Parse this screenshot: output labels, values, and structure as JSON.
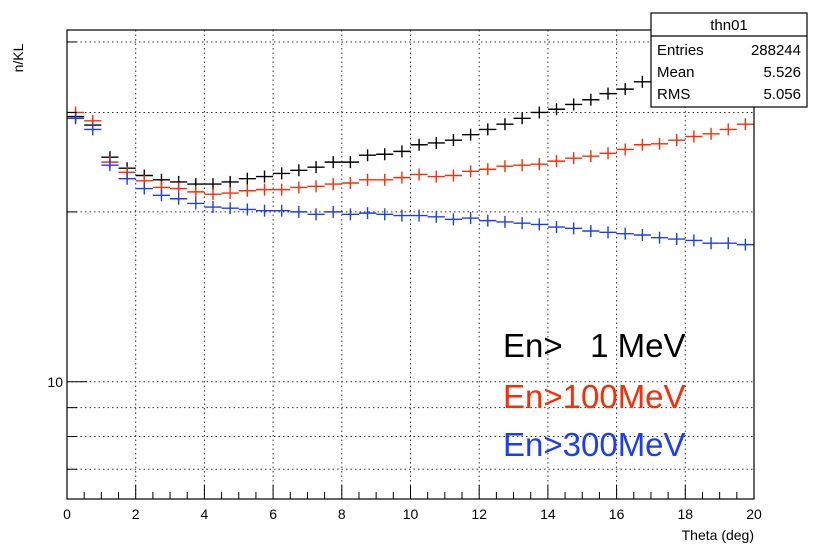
{
  "chart_data": {
    "type": "scatter",
    "xlabel": "Theta (deg)",
    "ylabel": "n/KL",
    "xlim": [
      0,
      20
    ],
    "ylim": [
      6.2,
      42
    ],
    "y_scale": "log",
    "grid": true,
    "x_ticks": [
      "0",
      "2",
      "4",
      "6",
      "8",
      "10",
      "12",
      "14",
      "16",
      "18",
      "20"
    ],
    "y_tick_labels": [
      {
        "value": 10,
        "label": "10"
      }
    ],
    "stats_box": {
      "title": "thn01",
      "rows": [
        {
          "label": "Entries",
          "value": "288244"
        },
        {
          "label": "Mean",
          "value": "5.526"
        },
        {
          "label": "RMS",
          "value": "5.056"
        }
      ]
    },
    "legend": [
      {
        "text": "En>   1 MeV",
        "color": "#000000"
      },
      {
        "text": "En>100MeV",
        "color": "#ff2a00"
      },
      {
        "text": "En>300MeV",
        "color": "#1a3cff"
      }
    ],
    "x": [
      0.25,
      0.75,
      1.25,
      1.75,
      2.25,
      2.75,
      3.25,
      3.75,
      4.25,
      4.75,
      5.25,
      5.75,
      6.25,
      6.75,
      7.25,
      7.75,
      8.25,
      8.75,
      9.25,
      9.75,
      10.25,
      10.75,
      11.25,
      11.75,
      12.25,
      12.75,
      13.25,
      13.75,
      14.25,
      14.75,
      15.25,
      15.75,
      16.25,
      16.75,
      17.25,
      17.75,
      18.25,
      18.75,
      19.25,
      19.75
    ],
    "series": [
      {
        "color": "#000000",
        "values": [
          29.5,
          28.5,
          25.0,
          23.9,
          23.2,
          22.8,
          22.6,
          22.4,
          22.4,
          22.6,
          22.9,
          23.1,
          23.4,
          23.7,
          24.0,
          24.5,
          24.5,
          25.2,
          25.3,
          25.6,
          26.3,
          26.5,
          26.8,
          27.4,
          28.0,
          28.6,
          29.3,
          30.0,
          30.4,
          31.0,
          31.6,
          32.4,
          33.0,
          34.0,
          34.8,
          35.6,
          36.5,
          37.2,
          38.0,
          39.0
        ]
      },
      {
        "color": "#ff2a00",
        "values": [
          30.0,
          29.0,
          24.5,
          23.5,
          22.7,
          22.1,
          22.0,
          21.7,
          21.5,
          21.6,
          21.8,
          21.9,
          21.9,
          22.1,
          22.2,
          22.4,
          22.5,
          22.8,
          22.8,
          23.0,
          23.3,
          23.1,
          23.2,
          23.6,
          23.8,
          24.1,
          24.2,
          24.3,
          24.6,
          24.9,
          25.1,
          25.4,
          25.8,
          26.3,
          26.4,
          26.8,
          27.2,
          27.5,
          28.0,
          28.6
        ]
      },
      {
        "color": "#1a3cff",
        "values": [
          29.3,
          28.0,
          24.2,
          22.9,
          22.0,
          21.4,
          21.1,
          20.7,
          20.4,
          20.3,
          20.2,
          20.1,
          20.1,
          20.0,
          19.8,
          20.0,
          19.8,
          19.9,
          19.8,
          19.7,
          19.7,
          19.6,
          19.4,
          19.5,
          19.3,
          19.2,
          19.1,
          19.0,
          18.8,
          18.7,
          18.5,
          18.4,
          18.3,
          18.2,
          18.0,
          17.9,
          17.8,
          17.6,
          17.6,
          17.5
        ]
      }
    ]
  }
}
